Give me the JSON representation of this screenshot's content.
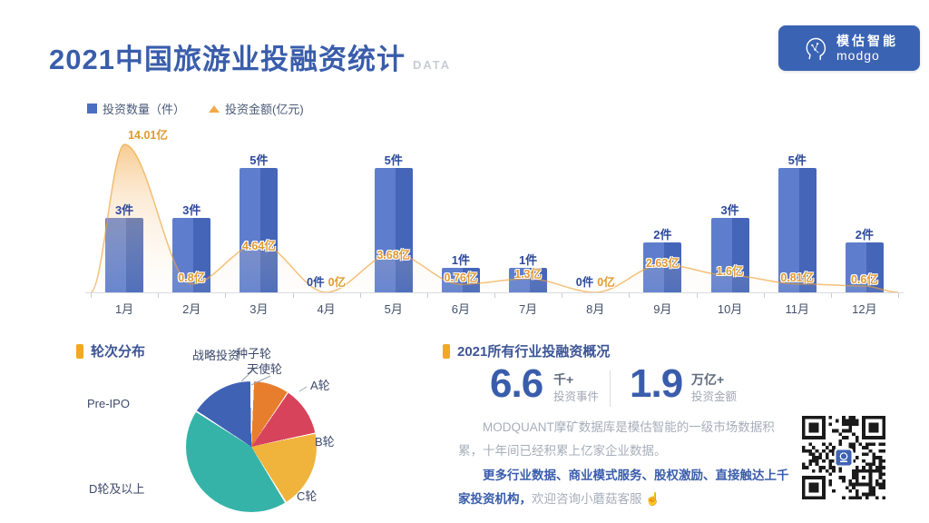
{
  "title": {
    "text": "2021中国旅游业投融资统计",
    "suffix": "DATA"
  },
  "logo": {
    "brand_cn": "模估智能",
    "brand_en": "modgo"
  },
  "legend": {
    "position": "top-left",
    "items": [
      {
        "label": "投资数量（件）",
        "marker": "square",
        "color": "#4a6ec1"
      },
      {
        "label": "投资金额(亿元)",
        "marker": "triangle",
        "color": "#f2a948"
      }
    ]
  },
  "chart_data": [
    {
      "type": "bar+area",
      "categories": [
        "1月",
        "2月",
        "3月",
        "4月",
        "5月",
        "6月",
        "7月",
        "8月",
        "9月",
        "10月",
        "11月",
        "12月"
      ],
      "series": [
        {
          "name": "投资数量（件）",
          "type": "bar",
          "unit": "件",
          "color": "#4a6ec1",
          "values": [
            3,
            3,
            5,
            0,
            5,
            1,
            1,
            0,
            2,
            3,
            5,
            2
          ],
          "labels": [
            "3件",
            "3件",
            "5件",
            "0件",
            "5件",
            "1件",
            "1件",
            "0件",
            "2件",
            "3件",
            "5件",
            "2件"
          ]
        },
        {
          "name": "投资金额(亿元)",
          "type": "area",
          "unit": "亿",
          "color": "#f2a948",
          "values": [
            14.01,
            0.8,
            4.64,
            0,
            3.68,
            0.76,
            1.3,
            0,
            2.63,
            1.6,
            0.81,
            0.6
          ],
          "labels": [
            "14.01亿",
            "0.8亿",
            "4.64亿",
            "0亿",
            "3.68亿",
            "0.76亿",
            "1.3亿",
            "0亿",
            "2.63亿",
            "1.6亿",
            "0.81亿",
            "0.6亿"
          ]
        }
      ],
      "ylim_bars": [
        0,
        6
      ],
      "ylim_area": [
        0,
        15
      ],
      "grid": false
    },
    {
      "type": "pie",
      "title": "轮次分布",
      "slices": [
        {
          "label": "种子轮",
          "share_pct_est": 0.5,
          "color": "#ffffff"
        },
        {
          "label": "天使轮",
          "share_pct_est": 9,
          "color": "#e77e2e"
        },
        {
          "label": "A轮",
          "share_pct_est": 12,
          "color": "#d8435c"
        },
        {
          "label": "B轮",
          "share_pct_est": 19.5,
          "color": "#f0b33c"
        },
        {
          "label": "C轮",
          "share_pct_est": 17,
          "color": "#36b3a8"
        },
        {
          "label": "D轮及以上",
          "share_pct_est": 25.5,
          "color": "#36b3a8"
        },
        {
          "label": "Pre-IPO",
          "share_pct_est": 8,
          "color": "#3f62b5"
        },
        {
          "label": "战略投资",
          "share_pct_est": 8.5,
          "color": "#3f62b5"
        }
      ],
      "legend_position": "labels-around"
    }
  ],
  "overview": {
    "title": "2021所有行业投融资概况",
    "stats": [
      {
        "value": "6.6",
        "unit": "千+",
        "label": "投资事件"
      },
      {
        "value": "1.9",
        "unit": "万亿+",
        "label": "投资金额"
      }
    ],
    "description": "MODQUANT摩矿数据库是模估智能的一级市场数据积累，十年间已经积累上亿家企业数据。",
    "cta_bold": "更多行业数据、商业模式服务、股权激励、直接触达上千家投资机构，",
    "cta_tail": "欢迎咨询小蘑菇客服",
    "cta_icon": "☝"
  },
  "colors": {
    "accent_orange": "#f5a623",
    "title_blue": "#3a5dab",
    "bar_blue": "#4a6ec1",
    "area_orange": "#f2a948",
    "pie_orange": "#e77e2e",
    "pie_red": "#d8435c",
    "pie_gold": "#f0b33c",
    "pie_teal": "#36b3a8",
    "pie_blue": "#3f62b5"
  }
}
